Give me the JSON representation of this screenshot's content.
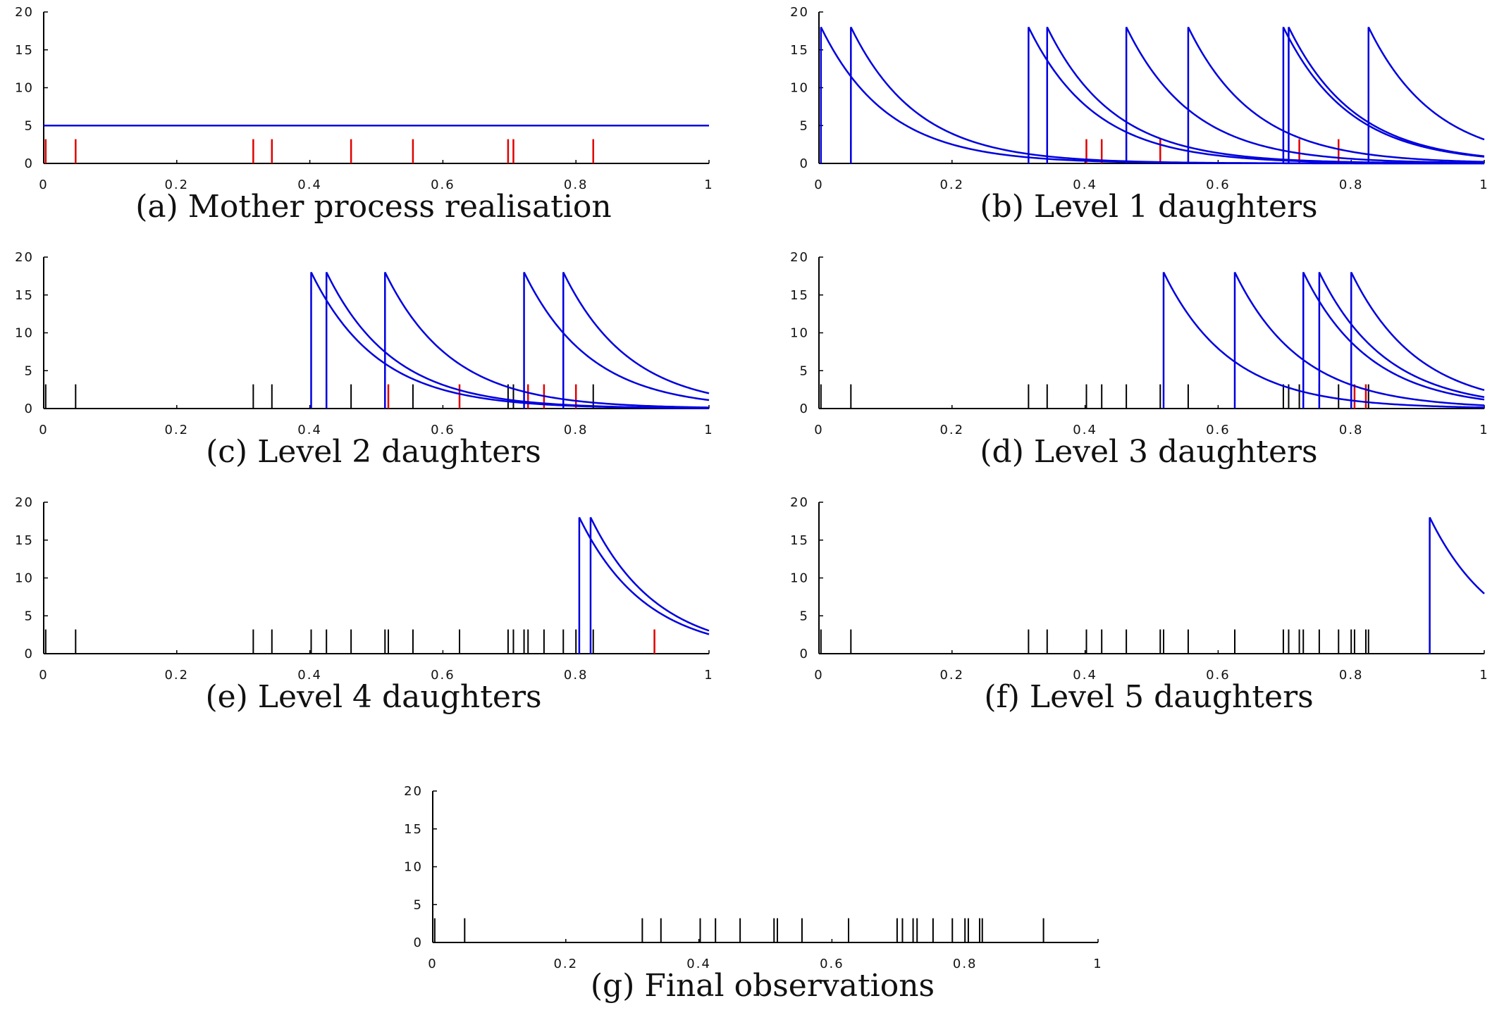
{
  "colors": {
    "intensity": "#0000e0",
    "new_events": "#e00000",
    "old_events": "#000000"
  },
  "chart_data": [
    {
      "type": "line",
      "caption": "(a) Mother process realisation",
      "xlim": [
        0,
        1
      ],
      "ylim": [
        0,
        20
      ],
      "xticks": [
        "0",
        "0.2",
        "0.4",
        "0.6",
        "0.8",
        "1"
      ],
      "yticks": [
        "0",
        "5",
        "10",
        "15",
        "20"
      ],
      "intensity": {
        "kind": "constant",
        "value": 5
      },
      "red_events": [
        0.003,
        0.048,
        0.315,
        0.343,
        0.462,
        0.555,
        0.698,
        0.706,
        0.826
      ],
      "black_events": []
    },
    {
      "type": "line",
      "caption": "(b) Level 1 daughters",
      "xlim": [
        0,
        1
      ],
      "ylim": [
        0,
        20
      ],
      "xticks": [
        "0",
        "0.2",
        "0.4",
        "0.6",
        "0.8",
        "1"
      ],
      "yticks": [
        "0",
        "5",
        "10",
        "15",
        "20"
      ],
      "intensity": {
        "kind": "exp_decay",
        "peak": 18,
        "decay": 10,
        "onsets": [
          0.003,
          0.048,
          0.315,
          0.343,
          0.462,
          0.555,
          0.698,
          0.706,
          0.826
        ]
      },
      "red_events": [
        0.402,
        0.425,
        0.513,
        0.722,
        0.781
      ],
      "black_events": [
        0.003,
        0.048,
        0.315,
        0.343,
        0.462,
        0.555,
        0.698,
        0.706,
        0.826
      ]
    },
    {
      "type": "line",
      "caption": "(c) Level 2 daughters",
      "xlim": [
        0,
        1
      ],
      "ylim": [
        0,
        20
      ],
      "xticks": [
        "0",
        "0.2",
        "0.4",
        "0.6",
        "0.8",
        "1"
      ],
      "yticks": [
        "0",
        "5",
        "10",
        "15",
        "20"
      ],
      "intensity": {
        "kind": "exp_decay",
        "peak": 18,
        "decay": 10,
        "onsets": [
          0.402,
          0.425,
          0.513,
          0.722,
          0.781
        ]
      },
      "red_events": [
        0.518,
        0.625,
        0.728,
        0.752,
        0.8
      ],
      "black_events": [
        0.003,
        0.048,
        0.315,
        0.343,
        0.402,
        0.425,
        0.462,
        0.513,
        0.555,
        0.698,
        0.706,
        0.722,
        0.781,
        0.826
      ]
    },
    {
      "type": "line",
      "caption": "(d) Level 3 daughters",
      "xlim": [
        0,
        1
      ],
      "ylim": [
        0,
        20
      ],
      "xticks": [
        "0",
        "0.2",
        "0.4",
        "0.6",
        "0.8",
        "1"
      ],
      "yticks": [
        "0",
        "5",
        "10",
        "15",
        "20"
      ],
      "intensity": {
        "kind": "exp_decay",
        "peak": 18,
        "decay": 10,
        "onsets": [
          0.518,
          0.625,
          0.728,
          0.752,
          0.8
        ]
      },
      "red_events": [
        0.805,
        0.822
      ],
      "black_events": [
        0.003,
        0.048,
        0.315,
        0.343,
        0.402,
        0.425,
        0.462,
        0.513,
        0.518,
        0.555,
        0.625,
        0.698,
        0.706,
        0.722,
        0.728,
        0.752,
        0.781,
        0.8,
        0.826
      ]
    },
    {
      "type": "line",
      "caption": "(e) Level 4 daughters",
      "xlim": [
        0,
        1
      ],
      "ylim": [
        0,
        20
      ],
      "xticks": [
        "0",
        "0.2",
        "0.4",
        "0.6",
        "0.8",
        "1"
      ],
      "yticks": [
        "0",
        "5",
        "10",
        "15",
        "20"
      ],
      "intensity": {
        "kind": "exp_decay",
        "peak": 18,
        "decay": 10,
        "onsets": [
          0.805,
          0.822
        ]
      },
      "red_events": [
        0.918
      ],
      "black_events": [
        0.003,
        0.048,
        0.315,
        0.343,
        0.402,
        0.425,
        0.462,
        0.513,
        0.518,
        0.555,
        0.625,
        0.698,
        0.706,
        0.722,
        0.728,
        0.752,
        0.781,
        0.8,
        0.805,
        0.822,
        0.826
      ]
    },
    {
      "type": "line",
      "caption": "(f) Level 5 daughters",
      "xlim": [
        0,
        1
      ],
      "ylim": [
        0,
        20
      ],
      "xticks": [
        "0",
        "0.2",
        "0.4",
        "0.6",
        "0.8",
        "1"
      ],
      "yticks": [
        "0",
        "5",
        "10",
        "15",
        "20"
      ],
      "intensity": {
        "kind": "exp_decay",
        "peak": 18,
        "decay": 10,
        "onsets": [
          0.918
        ]
      },
      "red_events": [],
      "black_events": [
        0.003,
        0.048,
        0.315,
        0.343,
        0.402,
        0.425,
        0.462,
        0.513,
        0.518,
        0.555,
        0.625,
        0.698,
        0.706,
        0.722,
        0.728,
        0.752,
        0.781,
        0.8,
        0.805,
        0.822,
        0.826,
        0.918
      ]
    },
    {
      "type": "line",
      "caption": "(g) Final observations",
      "xlim": [
        0,
        1
      ],
      "ylim": [
        0,
        20
      ],
      "xticks": [
        "0",
        "0.2",
        "0.4",
        "0.6",
        "0.8",
        "1"
      ],
      "yticks": [
        "0",
        "5",
        "10",
        "15",
        "20"
      ],
      "intensity": null,
      "red_events": [],
      "black_events": [
        0.003,
        0.048,
        0.315,
        0.343,
        0.402,
        0.425,
        0.462,
        0.513,
        0.518,
        0.555,
        0.625,
        0.698,
        0.706,
        0.722,
        0.728,
        0.752,
        0.781,
        0.8,
        0.805,
        0.822,
        0.826,
        0.918
      ]
    }
  ]
}
